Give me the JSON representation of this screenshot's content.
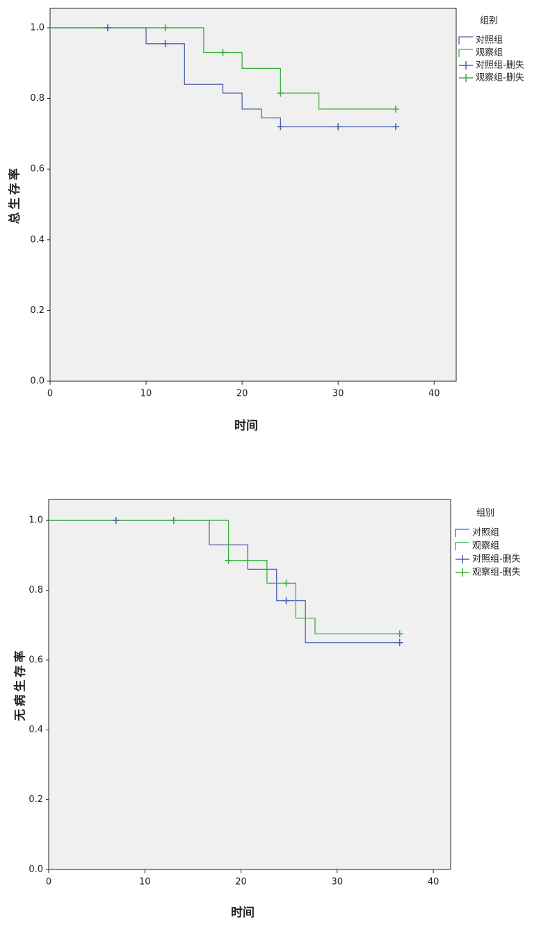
{
  "chart_data": [
    {
      "type": "step",
      "ylabel": "总生存率",
      "xlabel": "时间",
      "legend_title": "组别",
      "xlim": [
        0,
        42.3
      ],
      "ylim": [
        0,
        1.055
      ],
      "xticks": [
        0,
        10,
        20,
        30,
        40
      ],
      "yticks": [
        {
          "value": 0,
          "label": "0.0"
        },
        0.2,
        0.4,
        0.6,
        0.8,
        {
          "value": 1,
          "label": "1.0"
        }
      ],
      "series": [
        {
          "name": "对照组",
          "color": "#4f5fae",
          "drawstyle": "steps-post",
          "x": [
            0,
            10,
            14,
            18,
            20,
            22,
            24,
            36
          ],
          "values": [
            1,
            0.955,
            0.84,
            0.815,
            0.77,
            0.745,
            0.72,
            0.72
          ]
        },
        {
          "name": "观察组",
          "color": "#3cae3c",
          "drawstyle": "steps-post",
          "x": [
            0,
            16,
            20,
            24,
            28,
            36
          ],
          "values": [
            1,
            0.93,
            0.885,
            0.815,
            0.77,
            0.77
          ]
        },
        {
          "name": "对照组-删失",
          "color": "#4f5fae",
          "marker": "+",
          "x": [
            6,
            12,
            24,
            30,
            36
          ],
          "values": [
            1,
            0.955,
            0.72,
            0.72,
            0.72
          ]
        },
        {
          "name": "观察组-删失",
          "color": "#3cae3c",
          "marker": "+",
          "x": [
            12,
            18,
            24,
            36
          ],
          "values": [
            1,
            0.93,
            0.815,
            0.77
          ]
        }
      ]
    },
    {
      "type": "step",
      "ylabel": "无病生存率",
      "xlabel": "时间",
      "legend_title": "组别",
      "xlim": [
        0,
        41.8
      ],
      "ylim": [
        0,
        1.06
      ],
      "xticks": [
        0,
        10,
        20,
        30,
        40
      ],
      "yticks": [
        {
          "value": 0,
          "label": "0.0"
        },
        0.2,
        0.4,
        0.6,
        0.8,
        {
          "value": 1,
          "label": "1.0"
        }
      ],
      "series": [
        {
          "name": "对照组",
          "color": "#4f5fae",
          "drawstyle": "steps-post",
          "x": [
            0,
            16.7,
            20.7,
            23.7,
            26.7,
            36.5
          ],
          "values": [
            1,
            0.93,
            0.86,
            0.77,
            0.65,
            0.65
          ]
        },
        {
          "name": "观察组",
          "color": "#3cae3c",
          "drawstyle": "steps-post",
          "x": [
            0,
            18.7,
            22.7,
            25.7,
            27.7,
            36.5
          ],
          "values": [
            1,
            0.885,
            0.82,
            0.72,
            0.675,
            0.675
          ]
        },
        {
          "name": "对照组-删失",
          "color": "#4f5fae",
          "marker": "+",
          "x": [
            7,
            13,
            24.7,
            36.5
          ],
          "values": [
            1,
            1,
            0.77,
            0.65
          ]
        },
        {
          "name": "观察组-删失",
          "color": "#3cae3c",
          "marker": "+",
          "x": [
            13,
            18.7,
            24.7,
            36.5
          ],
          "values": [
            1,
            0.885,
            0.82,
            0.675
          ]
        }
      ]
    }
  ]
}
